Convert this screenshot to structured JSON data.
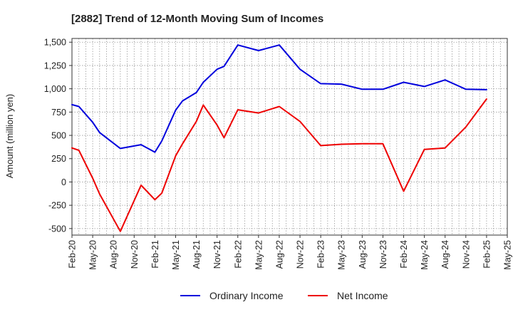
{
  "chart_data": {
    "type": "line",
    "title": "[2882]  Trend of 12-Month Moving Sum of Incomes",
    "xlabel": "",
    "ylabel": "Amount (million yen)",
    "ylim": [
      -570,
      1540
    ],
    "yticks": [
      -500,
      -250,
      0,
      250,
      500,
      750,
      1000,
      1250,
      1500
    ],
    "ytick_labels": [
      "-500",
      "-250",
      "0",
      "250",
      "500",
      "750",
      "1,000",
      "1,250",
      "1,500"
    ],
    "xlim": [
      0,
      63
    ],
    "xtick_positions": [
      0,
      3,
      6,
      9,
      12,
      15,
      18,
      21,
      24,
      27,
      30,
      33,
      36,
      39,
      42,
      45,
      48,
      51,
      54,
      57,
      60,
      63
    ],
    "xtick_labels": [
      "Feb-20",
      "May-20",
      "Aug-20",
      "Nov-20",
      "Feb-21",
      "May-21",
      "Aug-21",
      "Nov-21",
      "Feb-22",
      "May-22",
      "Aug-22",
      "Nov-22",
      "Feb-23",
      "May-23",
      "Aug-23",
      "Nov-23",
      "Feb-24",
      "May-24",
      "Aug-24",
      "Nov-24",
      "Feb-25",
      "May-25"
    ],
    "grid": true,
    "legend_position": "bottom-center",
    "series": [
      {
        "name": "Ordinary Income",
        "color": "#0000dd",
        "x": [
          0,
          1,
          3,
          4,
          7,
          10,
          12,
          13,
          15,
          16,
          18,
          19,
          21,
          22,
          24,
          27,
          30,
          33,
          36,
          39,
          42,
          45,
          48,
          51,
          54,
          57,
          60
        ],
        "y": [
          830,
          810,
          640,
          530,
          360,
          400,
          320,
          440,
          770,
          870,
          960,
          1070,
          1210,
          1240,
          1470,
          1410,
          1470,
          1210,
          1055,
          1050,
          995,
          995,
          1070,
          1025,
          1095,
          995,
          990
        ]
      },
      {
        "name": "Net Income",
        "color": "#ee0000",
        "x": [
          0,
          1,
          3,
          4,
          7,
          10,
          12,
          13,
          15,
          16,
          18,
          19,
          21,
          22,
          24,
          27,
          30,
          33,
          36,
          39,
          42,
          45,
          48,
          51,
          54,
          57,
          60
        ],
        "y": [
          365,
          340,
          40,
          -130,
          -530,
          -35,
          -190,
          -120,
          280,
          410,
          650,
          825,
          610,
          475,
          775,
          740,
          810,
          650,
          390,
          405,
          410,
          410,
          -100,
          350,
          365,
          590,
          890
        ]
      }
    ]
  }
}
